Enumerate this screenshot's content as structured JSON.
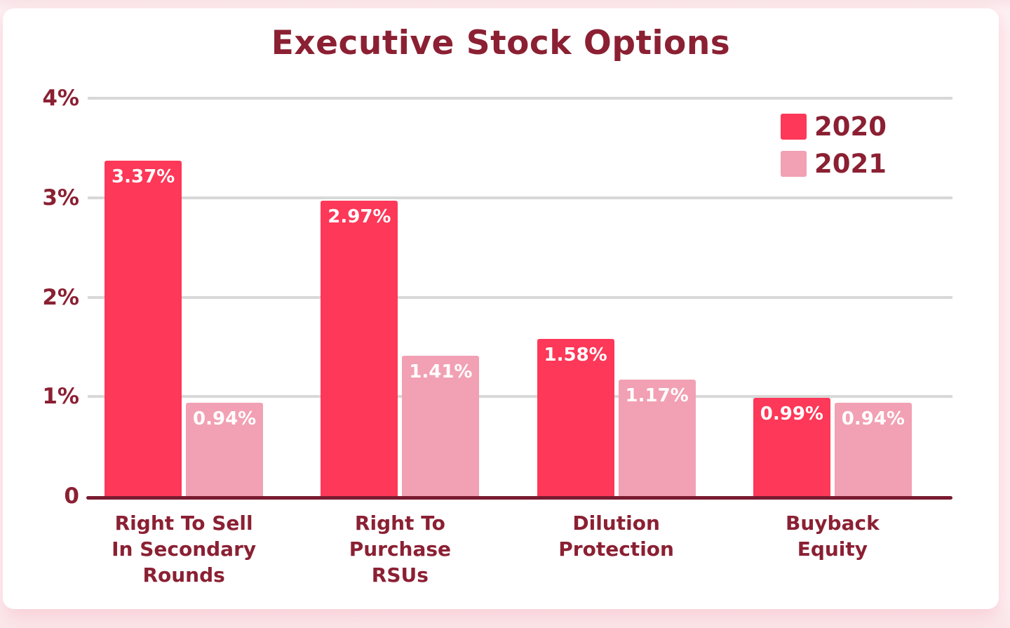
{
  "theme": {
    "page_background": "#FDF1F3",
    "card_background": "#FFFFFF",
    "text_maroon": "#8B2033",
    "axis_line_color": "#7A1B30",
    "gridline_color": "#D8D8D8",
    "bar_color_2020": "#FD3858",
    "bar_color_2021": "#F2A0B3",
    "value_label_color": "#FFFFFF"
  },
  "chart_data": {
    "type": "bar",
    "title": "Executive Stock Options",
    "categories": [
      "Right To Sell\nIn Secondary\nRounds",
      "Right To\nPurchase\nRSUs",
      "Dilution\nProtection",
      "Buyback\nEquity"
    ],
    "series": [
      {
        "name": "2020",
        "color": "#FD3858",
        "values": [
          3.37,
          2.97,
          1.58,
          0.99
        ],
        "labels": [
          "3.37%",
          "2.97%",
          "1.58%",
          "0.99%"
        ]
      },
      {
        "name": "2021",
        "color": "#F2A0B3",
        "values": [
          0.94,
          1.41,
          1.17,
          0.94
        ],
        "labels": [
          "0.94%",
          "1.41%",
          "1.17%",
          "0.94%"
        ]
      }
    ],
    "y_axis": {
      "max": 4,
      "ticks": [
        {
          "label": "4%",
          "value": 4
        },
        {
          "label": "3%",
          "value": 3
        },
        {
          "label": "2%",
          "value": 2
        },
        {
          "label": "1%",
          "value": 1
        },
        {
          "label": "0",
          "value": 0
        }
      ]
    },
    "grid": true,
    "legend": {
      "position": "top-right",
      "entries": [
        "2020",
        "2021"
      ]
    }
  }
}
